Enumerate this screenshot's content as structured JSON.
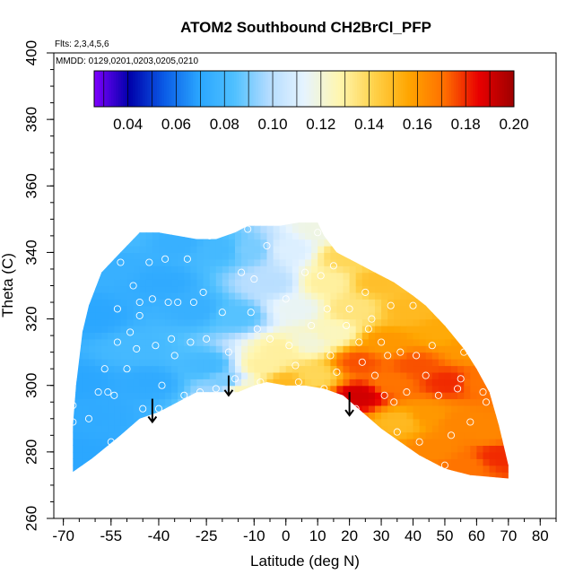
{
  "chart_data": {
    "type": "heatmap",
    "title": "ATOM2 Southbound CH2BrCl_PFP",
    "subtitle_flights": "Flts: 2,3,4,5,6",
    "subtitle_dates": "MMDD: 0129,0201,0203,0205,0210",
    "xlabel": "Latitude (deg N)",
    "ylabel": "Theta (C)",
    "xlim": [
      -73,
      85
    ],
    "ylim": [
      260,
      400
    ],
    "x_ticks": [
      -70,
      -55,
      -40,
      -25,
      -10,
      0,
      10,
      20,
      30,
      40,
      50,
      60,
      70,
      80
    ],
    "y_ticks": [
      260,
      280,
      300,
      320,
      340,
      360,
      380,
      400
    ],
    "colorbar": {
      "min": 0.026,
      "max": 0.2,
      "ticks": [
        0.04,
        0.06,
        0.08,
        0.1,
        0.12,
        0.14,
        0.16,
        0.18,
        0.2
      ],
      "tick_labels": [
        "0.04",
        "0.06",
        "0.08",
        "0.10",
        "0.12",
        "0.14",
        "0.16",
        "0.18",
        "0.20"
      ],
      "colors": [
        "#7f00ff",
        "#0000aa",
        "#0a5be6",
        "#2aa6ff",
        "#4fc0ff",
        "#b4dcff",
        "#e6f4ff",
        "#fff6b0",
        "#ffd24a",
        "#ffa500",
        "#ff7000",
        "#e80000",
        "#9e0000"
      ]
    },
    "field_points": [
      {
        "x": -66,
        "y": 278,
        "v": 0.07
      },
      {
        "x": -66,
        "y": 300,
        "v": 0.07
      },
      {
        "x": -62,
        "y": 320,
        "v": 0.07
      },
      {
        "x": -60,
        "y": 290,
        "v": 0.072
      },
      {
        "x": -55,
        "y": 335,
        "v": 0.075
      },
      {
        "x": -52,
        "y": 345,
        "v": 0.08
      },
      {
        "x": -48,
        "y": 310,
        "v": 0.08
      },
      {
        "x": -44,
        "y": 300,
        "v": 0.072
      },
      {
        "x": -40,
        "y": 330,
        "v": 0.072
      },
      {
        "x": -35,
        "y": 342,
        "v": 0.075
      },
      {
        "x": -30,
        "y": 322,
        "v": 0.075
      },
      {
        "x": -26,
        "y": 305,
        "v": 0.08
      },
      {
        "x": -22,
        "y": 340,
        "v": 0.08
      },
      {
        "x": -20,
        "y": 300,
        "v": 0.09
      },
      {
        "x": -16,
        "y": 320,
        "v": 0.085
      },
      {
        "x": -15,
        "y": 298,
        "v": 0.125
      },
      {
        "x": -12,
        "y": 340,
        "v": 0.09
      },
      {
        "x": -8,
        "y": 305,
        "v": 0.13
      },
      {
        "x": -6,
        "y": 330,
        "v": 0.1
      },
      {
        "x": -2,
        "y": 310,
        "v": 0.13
      },
      {
        "x": -1,
        "y": 300,
        "v": 0.15
      },
      {
        "x": 0,
        "y": 340,
        "v": 0.11
      },
      {
        "x": 2,
        "y": 322,
        "v": 0.115
      },
      {
        "x": 6,
        "y": 312,
        "v": 0.12
      },
      {
        "x": 8,
        "y": 302,
        "v": 0.14
      },
      {
        "x": 10,
        "y": 346,
        "v": 0.118
      },
      {
        "x": 12,
        "y": 330,
        "v": 0.13
      },
      {
        "x": 14,
        "y": 315,
        "v": 0.125
      },
      {
        "x": 18,
        "y": 338,
        "v": 0.14
      },
      {
        "x": 20,
        "y": 322,
        "v": 0.135
      },
      {
        "x": 22,
        "y": 306,
        "v": 0.175
      },
      {
        "x": 22,
        "y": 296,
        "v": 0.19
      },
      {
        "x": 28,
        "y": 330,
        "v": 0.148
      },
      {
        "x": 30,
        "y": 312,
        "v": 0.16
      },
      {
        "x": 32,
        "y": 300,
        "v": 0.17
      },
      {
        "x": 35,
        "y": 288,
        "v": 0.15
      },
      {
        "x": 38,
        "y": 322,
        "v": 0.15
      },
      {
        "x": 40,
        "y": 305,
        "v": 0.175
      },
      {
        "x": 44,
        "y": 290,
        "v": 0.16
      },
      {
        "x": 46,
        "y": 280,
        "v": 0.165
      },
      {
        "x": 48,
        "y": 315,
        "v": 0.155
      },
      {
        "x": 50,
        "y": 300,
        "v": 0.18
      },
      {
        "x": 53,
        "y": 288,
        "v": 0.165
      },
      {
        "x": 55,
        "y": 275,
        "v": 0.17
      },
      {
        "x": 56,
        "y": 310,
        "v": 0.16
      },
      {
        "x": 60,
        "y": 300,
        "v": 0.17
      },
      {
        "x": 62,
        "y": 285,
        "v": 0.165
      },
      {
        "x": 66,
        "y": 278,
        "v": 0.18
      }
    ],
    "data_outline": [
      [
        -67,
        274
      ],
      [
        -61,
        278
      ],
      [
        -52,
        285
      ],
      [
        -46,
        290
      ],
      [
        -40,
        292
      ],
      [
        -34,
        295
      ],
      [
        -28,
        298
      ],
      [
        -20,
        298
      ],
      [
        -15,
        298
      ],
      [
        -10,
        300
      ],
      [
        -6,
        301
      ],
      [
        0,
        300
      ],
      [
        6,
        300
      ],
      [
        12,
        299
      ],
      [
        18,
        297
      ],
      [
        24,
        292
      ],
      [
        30,
        287
      ],
      [
        36,
        283
      ],
      [
        42,
        279
      ],
      [
        50,
        275
      ],
      [
        58,
        273
      ],
      [
        70,
        272
      ],
      [
        70,
        276
      ],
      [
        67,
        288
      ],
      [
        64,
        298
      ],
      [
        60,
        305
      ],
      [
        56,
        311
      ],
      [
        50,
        318
      ],
      [
        44,
        324
      ],
      [
        40,
        327
      ],
      [
        34,
        331
      ],
      [
        28,
        334
      ],
      [
        22,
        337
      ],
      [
        16,
        340
      ],
      [
        12,
        345
      ],
      [
        10,
        349
      ],
      [
        4,
        349
      ],
      [
        -2,
        348
      ],
      [
        -6,
        348
      ],
      [
        -12,
        348
      ],
      [
        -16,
        346
      ],
      [
        -22,
        344
      ],
      [
        -28,
        344
      ],
      [
        -34,
        345
      ],
      [
        -40,
        346
      ],
      [
        -46,
        346
      ],
      [
        -52,
        340
      ],
      [
        -58,
        334
      ],
      [
        -62,
        324
      ],
      [
        -64,
        316
      ],
      [
        -66,
        300
      ],
      [
        -67,
        288
      ]
    ],
    "sample_points": [
      [
        -67,
        289
      ],
      [
        -67,
        294
      ],
      [
        -62,
        290
      ],
      [
        -59,
        298
      ],
      [
        -57,
        305
      ],
      [
        -56,
        298
      ],
      [
        -55,
        283
      ],
      [
        -54,
        297
      ],
      [
        -53,
        313
      ],
      [
        -53,
        323
      ],
      [
        -52,
        337
      ],
      [
        -50,
        305
      ],
      [
        -49,
        316
      ],
      [
        -48,
        330
      ],
      [
        -47,
        311
      ],
      [
        -46,
        321
      ],
      [
        -46,
        325
      ],
      [
        -45,
        293
      ],
      [
        -43,
        337
      ],
      [
        -42,
        326
      ],
      [
        -41,
        312
      ],
      [
        -40,
        293
      ],
      [
        -39,
        300
      ],
      [
        -38,
        338
      ],
      [
        -37,
        325
      ],
      [
        -36,
        314
      ],
      [
        -35,
        309
      ],
      [
        -34,
        325
      ],
      [
        -32,
        297
      ],
      [
        -31,
        338
      ],
      [
        -30,
        313
      ],
      [
        -29,
        325
      ],
      [
        -27,
        298
      ],
      [
        -26,
        328
      ],
      [
        -25,
        314
      ],
      [
        -24,
        345
      ],
      [
        -22,
        299
      ],
      [
        -20,
        322
      ],
      [
        -18,
        310
      ],
      [
        -16,
        302
      ],
      [
        -14,
        334
      ],
      [
        -12,
        347
      ],
      [
        -11,
        322
      ],
      [
        -10,
        332
      ],
      [
        -9,
        317
      ],
      [
        -8,
        301
      ],
      [
        -6,
        342
      ],
      [
        -5,
        314
      ],
      [
        -3,
        295
      ],
      [
        0,
        326
      ],
      [
        1,
        312
      ],
      [
        3,
        306
      ],
      [
        4,
        301
      ],
      [
        6,
        334
      ],
      [
        8,
        318
      ],
      [
        10,
        346
      ],
      [
        11,
        333
      ],
      [
        12,
        299
      ],
      [
        13,
        323
      ],
      [
        14,
        309
      ],
      [
        15,
        336
      ],
      [
        16,
        304
      ],
      [
        18,
        294
      ],
      [
        19,
        318
      ],
      [
        20,
        323
      ],
      [
        21,
        292
      ],
      [
        22,
        293
      ],
      [
        23,
        313
      ],
      [
        24,
        307
      ],
      [
        25,
        328
      ],
      [
        26,
        317
      ],
      [
        27,
        320
      ],
      [
        28,
        303
      ],
      [
        30,
        313
      ],
      [
        31,
        297
      ],
      [
        32,
        309
      ],
      [
        33,
        324
      ],
      [
        34,
        295
      ],
      [
        35,
        286
      ],
      [
        36,
        310
      ],
      [
        38,
        298
      ],
      [
        40,
        324
      ],
      [
        41,
        309
      ],
      [
        42,
        283
      ],
      [
        44,
        303
      ],
      [
        45,
        276
      ],
      [
        46,
        312
      ],
      [
        48,
        297
      ],
      [
        50,
        276
      ],
      [
        52,
        285
      ],
      [
        54,
        299
      ],
      [
        55,
        302
      ],
      [
        56,
        310
      ],
      [
        58,
        289
      ],
      [
        60,
        308
      ],
      [
        62,
        298
      ],
      [
        63,
        295
      ]
    ],
    "arrows": [
      {
        "x": -42,
        "y_top": 296,
        "y_tip": 289
      },
      {
        "x": -18,
        "y_top": 303,
        "y_tip": 297
      },
      {
        "x": 20,
        "y_top": 298,
        "y_tip": 291
      }
    ]
  }
}
